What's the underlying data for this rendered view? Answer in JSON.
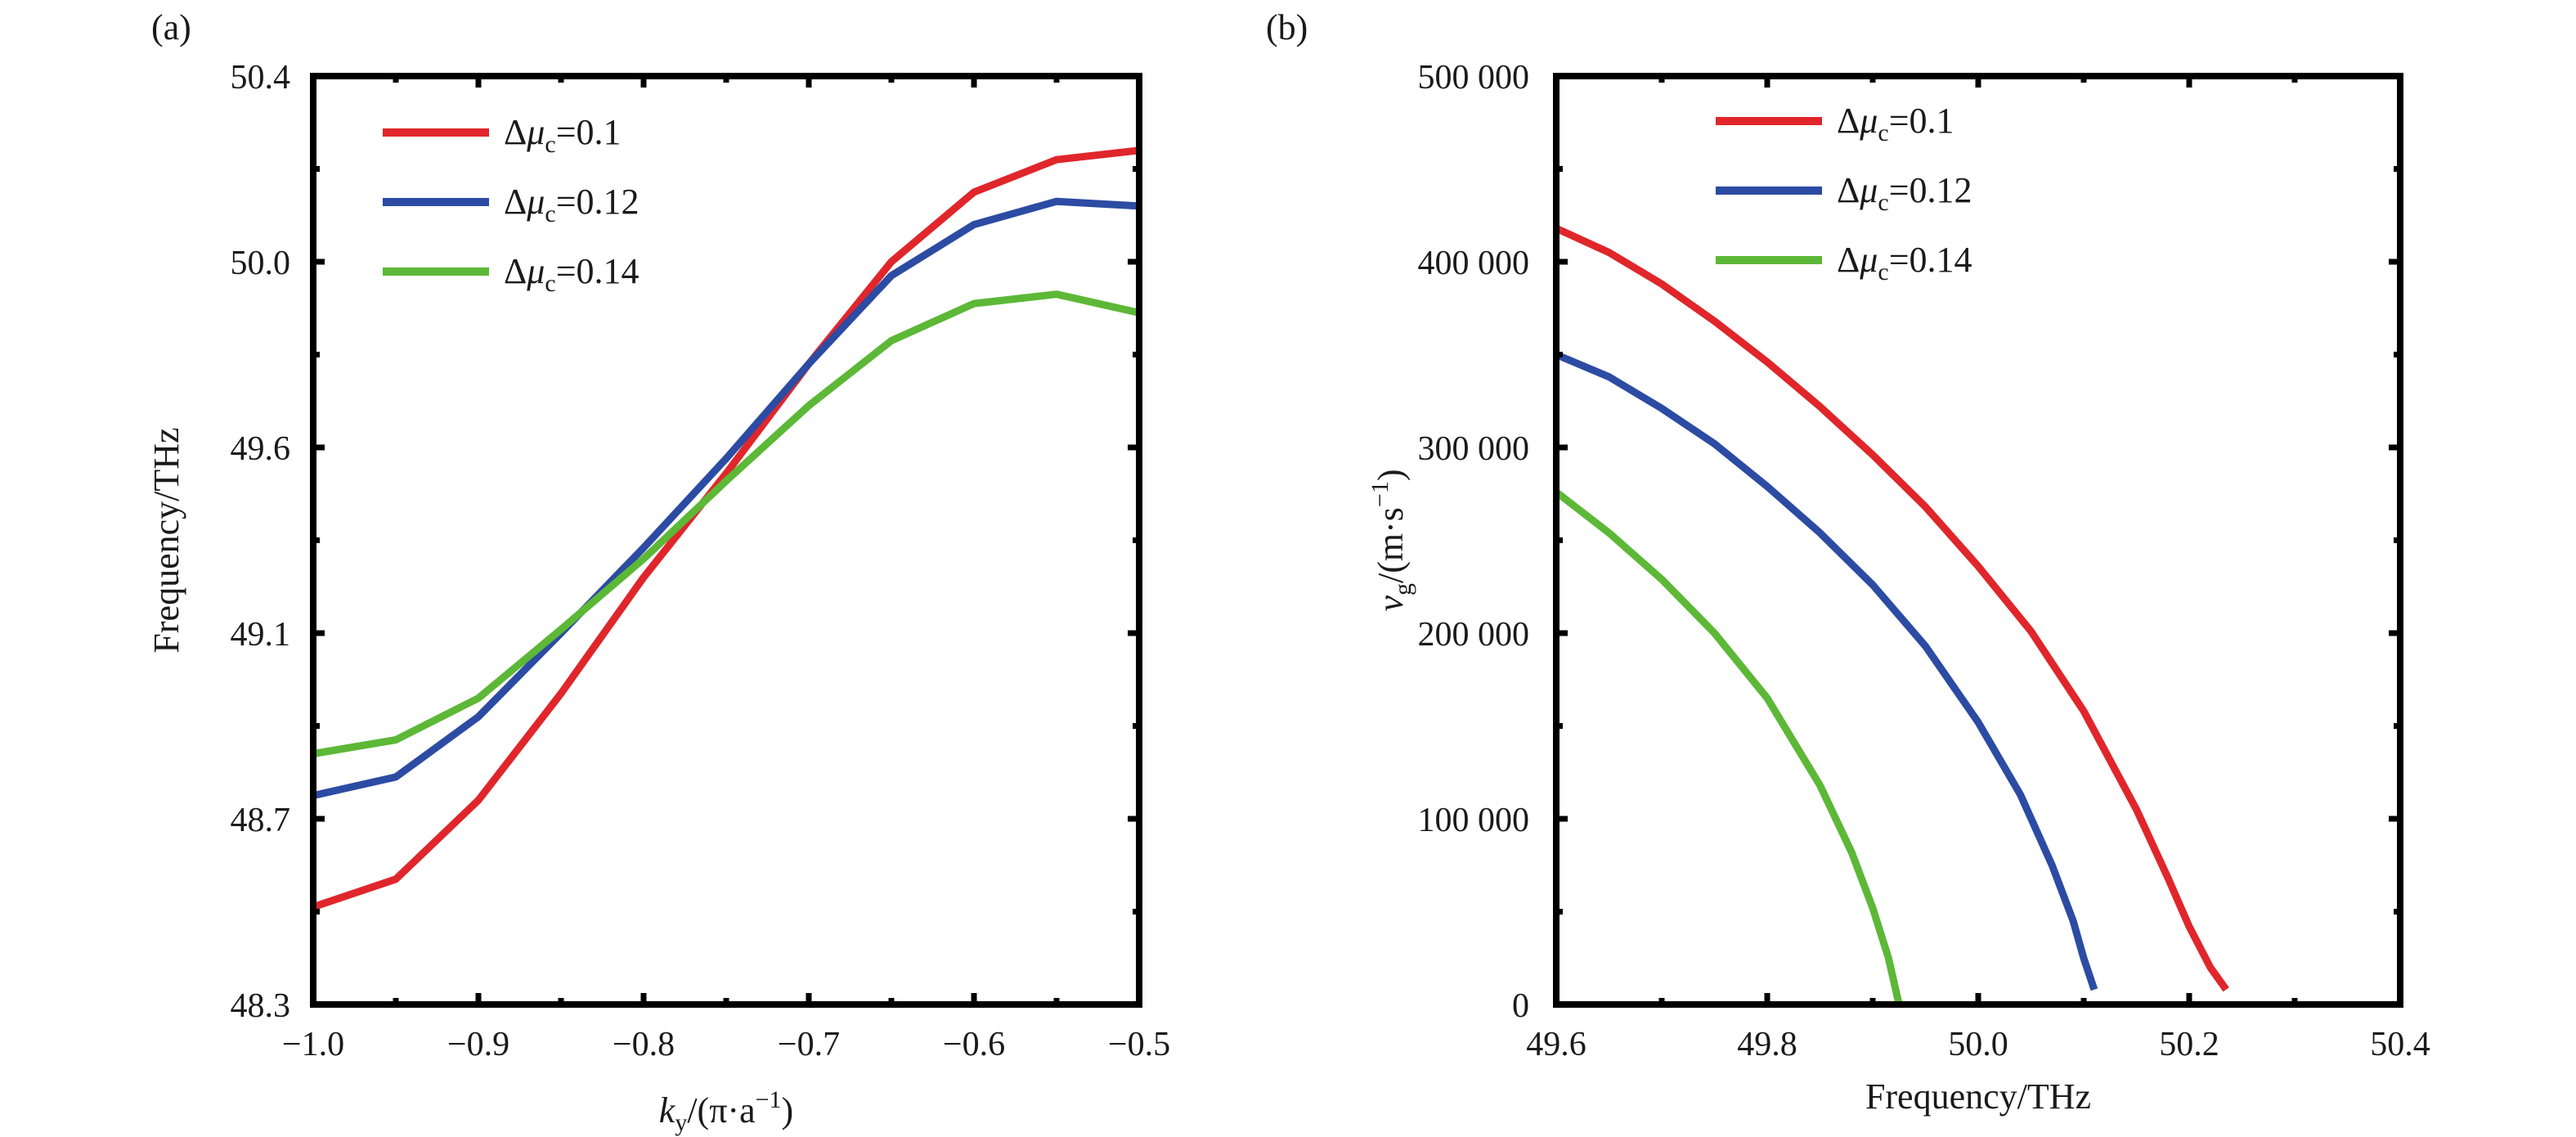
{
  "chart_data": [
    {
      "panel": "(a)",
      "type": "line",
      "xlabel": {
        "italic": "k",
        "sub": "y",
        "rest": "/(π·a",
        "sup": "−1",
        "close": ")"
      },
      "ylabel": "Frequency/THz",
      "xlim": [
        -1.0,
        -0.5
      ],
      "ylim": [
        48.3,
        50.4
      ],
      "xticks": [
        -1.0,
        -0.9,
        -0.8,
        -0.7,
        -0.6,
        -0.5
      ],
      "xtick_labels": [
        "−1.0",
        "−0.9",
        "−0.8",
        "−0.7",
        "−0.6",
        "−0.5"
      ],
      "yticks": [
        48.3,
        48.7,
        49.1,
        49.6,
        50.0,
        50.4
      ],
      "ytick_labels": [
        "48.3",
        "48.7",
        "49.1",
        "49.6",
        "50.0",
        "50.4"
      ],
      "legend": "top-left",
      "series": [
        {
          "name": "Δμc=0.1",
          "legend_main": "Δ",
          "legend_italic": "μ",
          "legend_sub": "c",
          "legend_rest": "=0.1",
          "color": "#e0262b",
          "x": [
            -1.0,
            -0.95,
            -0.9,
            -0.85,
            -0.8,
            -0.75,
            -0.7,
            -0.65,
            -0.6,
            -0.55,
            -0.5
          ],
          "y": [
            48.51,
            48.57,
            48.74,
            48.97,
            49.25,
            49.53,
            49.78,
            50.0,
            50.15,
            50.22,
            50.24
          ]
        },
        {
          "name": "Δμc=0.12",
          "legend_main": "Δ",
          "legend_italic": "μ",
          "legend_sub": "c",
          "legend_rest": "=0.12",
          "color": "#2c4ba3",
          "x": [
            -1.0,
            -0.95,
            -0.9,
            -0.85,
            -0.8,
            -0.75,
            -0.7,
            -0.65,
            -0.6,
            -0.55,
            -0.5
          ],
          "y": [
            48.75,
            48.79,
            48.92,
            49.1,
            49.33,
            49.57,
            49.78,
            49.97,
            50.08,
            50.13,
            50.12
          ]
        },
        {
          "name": "Δμc=0.14",
          "legend_main": "Δ",
          "legend_italic": "μ",
          "legend_sub": "c",
          "legend_rest": "=0.14",
          "color": "#5cb836",
          "x": [
            -1.0,
            -0.95,
            -0.9,
            -0.85,
            -0.8,
            -0.75,
            -0.7,
            -0.65,
            -0.6,
            -0.55,
            -0.5
          ],
          "y": [
            48.84,
            48.87,
            48.96,
            49.11,
            49.3,
            49.51,
            49.69,
            49.83,
            49.91,
            49.93,
            49.89
          ]
        }
      ]
    },
    {
      "panel": "(b)",
      "type": "line",
      "xlabel": "Frequency/THz",
      "ylabel": {
        "italic": "v",
        "sub": "g",
        "rest": "/(m·s",
        "sup": "−1",
        "close": ")"
      },
      "xlim": [
        49.6,
        50.4
      ],
      "ylim": [
        0,
        500000
      ],
      "xticks": [
        49.6,
        49.8,
        50.0,
        50.2,
        50.4
      ],
      "xtick_labels": [
        "49.6",
        "49.8",
        "50.0",
        "50.2",
        "50.4"
      ],
      "yticks": [
        0,
        100000,
        200000,
        300000,
        400000,
        500000
      ],
      "ytick_labels": [
        "0",
        "100 000",
        "200 000",
        "300 000",
        "400 000",
        "500 000"
      ],
      "legend": "top-center",
      "series": [
        {
          "name": "Δμc=0.1",
          "legend_main": "Δ",
          "legend_italic": "μ",
          "legend_sub": "c",
          "legend_rest": "=0.1",
          "color": "#e0262b",
          "x": [
            49.6,
            49.65,
            49.7,
            49.75,
            49.8,
            49.85,
            49.9,
            49.95,
            50.0,
            50.05,
            50.1,
            50.15,
            50.18,
            50.2,
            50.22,
            50.235
          ],
          "y": [
            418000,
            405000,
            388000,
            368000,
            346000,
            322000,
            296000,
            268000,
            236000,
            201000,
            158000,
            105000,
            68000,
            42000,
            20000,
            8000
          ]
        },
        {
          "name": "Δμc=0.12",
          "legend_main": "Δ",
          "legend_italic": "μ",
          "legend_sub": "c",
          "legend_rest": "=0.12",
          "color": "#2c4ba3",
          "x": [
            49.6,
            49.65,
            49.7,
            49.75,
            49.8,
            49.85,
            49.9,
            49.95,
            50.0,
            50.04,
            50.07,
            50.09,
            50.1,
            50.11
          ],
          "y": [
            350000,
            338000,
            321000,
            302000,
            279000,
            254000,
            226000,
            193000,
            152000,
            113000,
            75000,
            45000,
            25000,
            8000
          ]
        },
        {
          "name": "Δμc=0.14",
          "legend_main": "Δ",
          "legend_italic": "μ",
          "legend_sub": "c",
          "legend_rest": "=0.14",
          "color": "#5cb836",
          "x": [
            49.6,
            49.65,
            49.7,
            49.75,
            49.8,
            49.85,
            49.88,
            49.9,
            49.915,
            49.925
          ],
          "y": [
            276000,
            254000,
            229000,
            200000,
            165000,
            118000,
            82000,
            52000,
            25000,
            0
          ]
        }
      ]
    }
  ]
}
